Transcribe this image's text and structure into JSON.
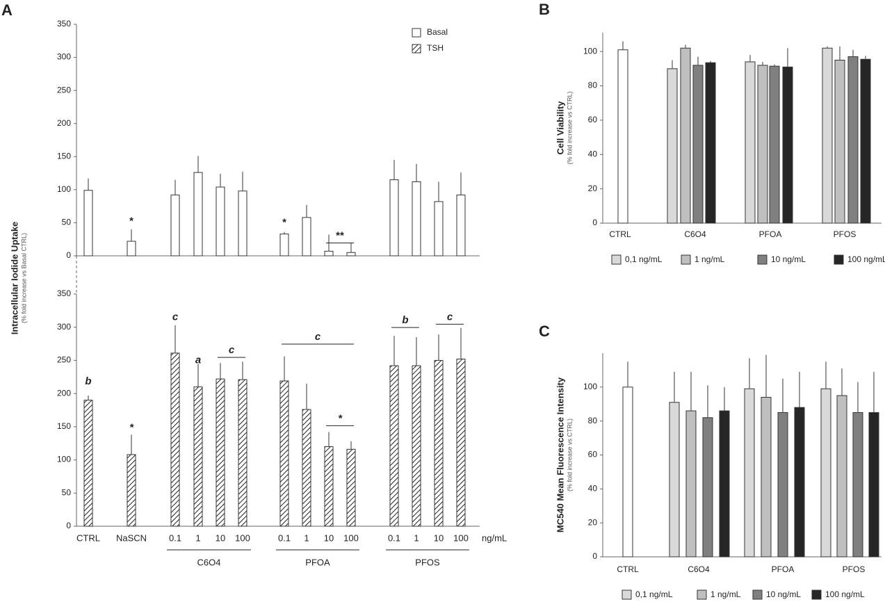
{
  "chart_data": [
    {
      "type": "bar",
      "panel": "A",
      "ylabel": "Intracellular Iodide Uptake",
      "ylabel_sub": "(% fold increase vs Basal CTRL)",
      "categories": [
        "CTRL",
        "NaSCN",
        "0.1",
        "1",
        "10",
        "100",
        "0.1",
        "1",
        "10",
        "100",
        "0.1",
        "1",
        "10",
        "100"
      ],
      "groups": [
        "C6O4",
        "PFOA",
        "PFOS"
      ],
      "unit": "ng/mL",
      "ylim": [
        0,
        350
      ],
      "yticks": [
        0,
        50,
        100,
        150,
        200,
        250,
        300,
        350
      ],
      "series": [
        {
          "name": "Basal",
          "color": "#ffffff",
          "hatch": false,
          "values": [
            99,
            22,
            92,
            126,
            104,
            98,
            33,
            58,
            7,
            5,
            115,
            112,
            82,
            92
          ],
          "errors": [
            18,
            18,
            23,
            25,
            20,
            29,
            3,
            19,
            25,
            15,
            30,
            27,
            30,
            34
          ],
          "annotations": [
            "*",
            "*",
            "**"
          ]
        },
        {
          "name": "TSH",
          "color": "#ffffff",
          "hatch": true,
          "values": [
            190,
            108,
            261,
            210,
            222,
            221,
            219,
            176,
            120,
            116,
            242,
            242,
            250,
            252
          ],
          "errors": [
            7,
            30,
            42,
            35,
            24,
            27,
            37,
            39,
            22,
            12,
            45,
            43,
            39,
            47
          ],
          "annotations": [
            "b",
            "*",
            "c",
            "a",
            "c",
            "c",
            "*",
            "b",
            "c"
          ]
        }
      ]
    },
    {
      "type": "bar",
      "panel": "B",
      "ylabel": "Cell Viability",
      "ylabel_sub": "(% fold increase vs CTRL)",
      "categories": [
        "CTRL",
        "C6O4",
        "PFOA",
        "PFOS"
      ],
      "ylim": [
        0,
        111
      ],
      "yticks": [
        0,
        20,
        40,
        60,
        80,
        100
      ],
      "control": {
        "value": 101,
        "error": 5,
        "color": "#ffffff"
      },
      "series": [
        {
          "name": "0,1 ng/mL",
          "color": "#d9d9d9",
          "values": [
            null,
            90,
            94,
            102
          ],
          "errors": [
            null,
            5,
            4,
            1
          ]
        },
        {
          "name": "1 ng/mL",
          "color": "#bfbfbf",
          "values": [
            null,
            102,
            92,
            95
          ],
          "errors": [
            null,
            2,
            2,
            8
          ]
        },
        {
          "name": "10 ng/mL",
          "color": "#808080",
          "values": [
            null,
            92,
            91.5,
            97
          ],
          "errors": [
            null,
            5,
            1,
            4
          ]
        },
        {
          "name": "100 ng/mL",
          "color": "#262626",
          "values": [
            null,
            93.5,
            91,
            95.5
          ],
          "errors": [
            null,
            1,
            11,
            2
          ]
        }
      ]
    },
    {
      "type": "bar",
      "panel": "C",
      "ylabel": "MC540 Mean Fluorescence Intensity",
      "ylabel_sub": "(% fold increase vs CTRL)",
      "categories": [
        "CTRL",
        "C6O4",
        "PFOA",
        "PFOS"
      ],
      "ylim": [
        0,
        120
      ],
      "yticks": [
        0,
        20,
        40,
        60,
        80,
        100
      ],
      "control": {
        "value": 100,
        "error": 15,
        "color": "#ffffff"
      },
      "series": [
        {
          "name": "0,1 ng/mL",
          "color": "#d9d9d9",
          "values": [
            null,
            91,
            99,
            99
          ],
          "errors": [
            null,
            18,
            18,
            16
          ]
        },
        {
          "name": "1 ng/mL",
          "color": "#bfbfbf",
          "values": [
            null,
            86,
            94,
            95
          ],
          "errors": [
            null,
            23,
            25,
            16
          ]
        },
        {
          "name": "10 ng/mL",
          "color": "#808080",
          "values": [
            null,
            82,
            85,
            85
          ],
          "errors": [
            null,
            19,
            20,
            18
          ]
        },
        {
          "name": "100 ng/mL",
          "color": "#262626",
          "values": [
            null,
            86,
            88,
            85
          ],
          "errors": [
            null,
            14,
            21,
            24
          ]
        }
      ]
    }
  ]
}
